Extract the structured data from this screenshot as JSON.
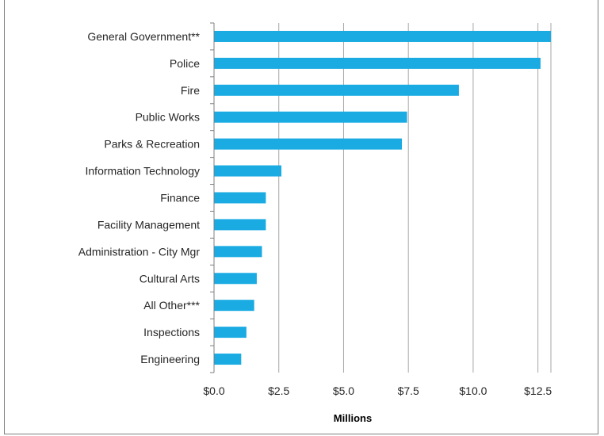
{
  "chart_data": {
    "type": "bar",
    "orientation": "horizontal",
    "categories": [
      "General Government**",
      "Police",
      "Fire",
      "Public Works",
      "Parks & Recreation",
      "Information Technology",
      "Finance",
      "Facility Management",
      "Administration - City Mgr",
      "Cultural Arts",
      "All Other***",
      "Inspections",
      "Engineering"
    ],
    "values": [
      13.0,
      12.6,
      9.45,
      7.45,
      7.25,
      2.6,
      2.0,
      2.0,
      1.85,
      1.65,
      1.55,
      1.25,
      1.05
    ],
    "xticks": [
      "$0.0",
      "$2.5",
      "$5.0",
      "$7.5",
      "$10.0",
      "$12.5"
    ],
    "xtick_values": [
      0,
      2.5,
      5,
      7.5,
      10,
      12.5
    ],
    "xlim": [
      0,
      13
    ],
    "xlabel": "Millions",
    "grid": "vertical",
    "bar_color": "#1aabe2",
    "grid_color": "#a6a6a6"
  }
}
